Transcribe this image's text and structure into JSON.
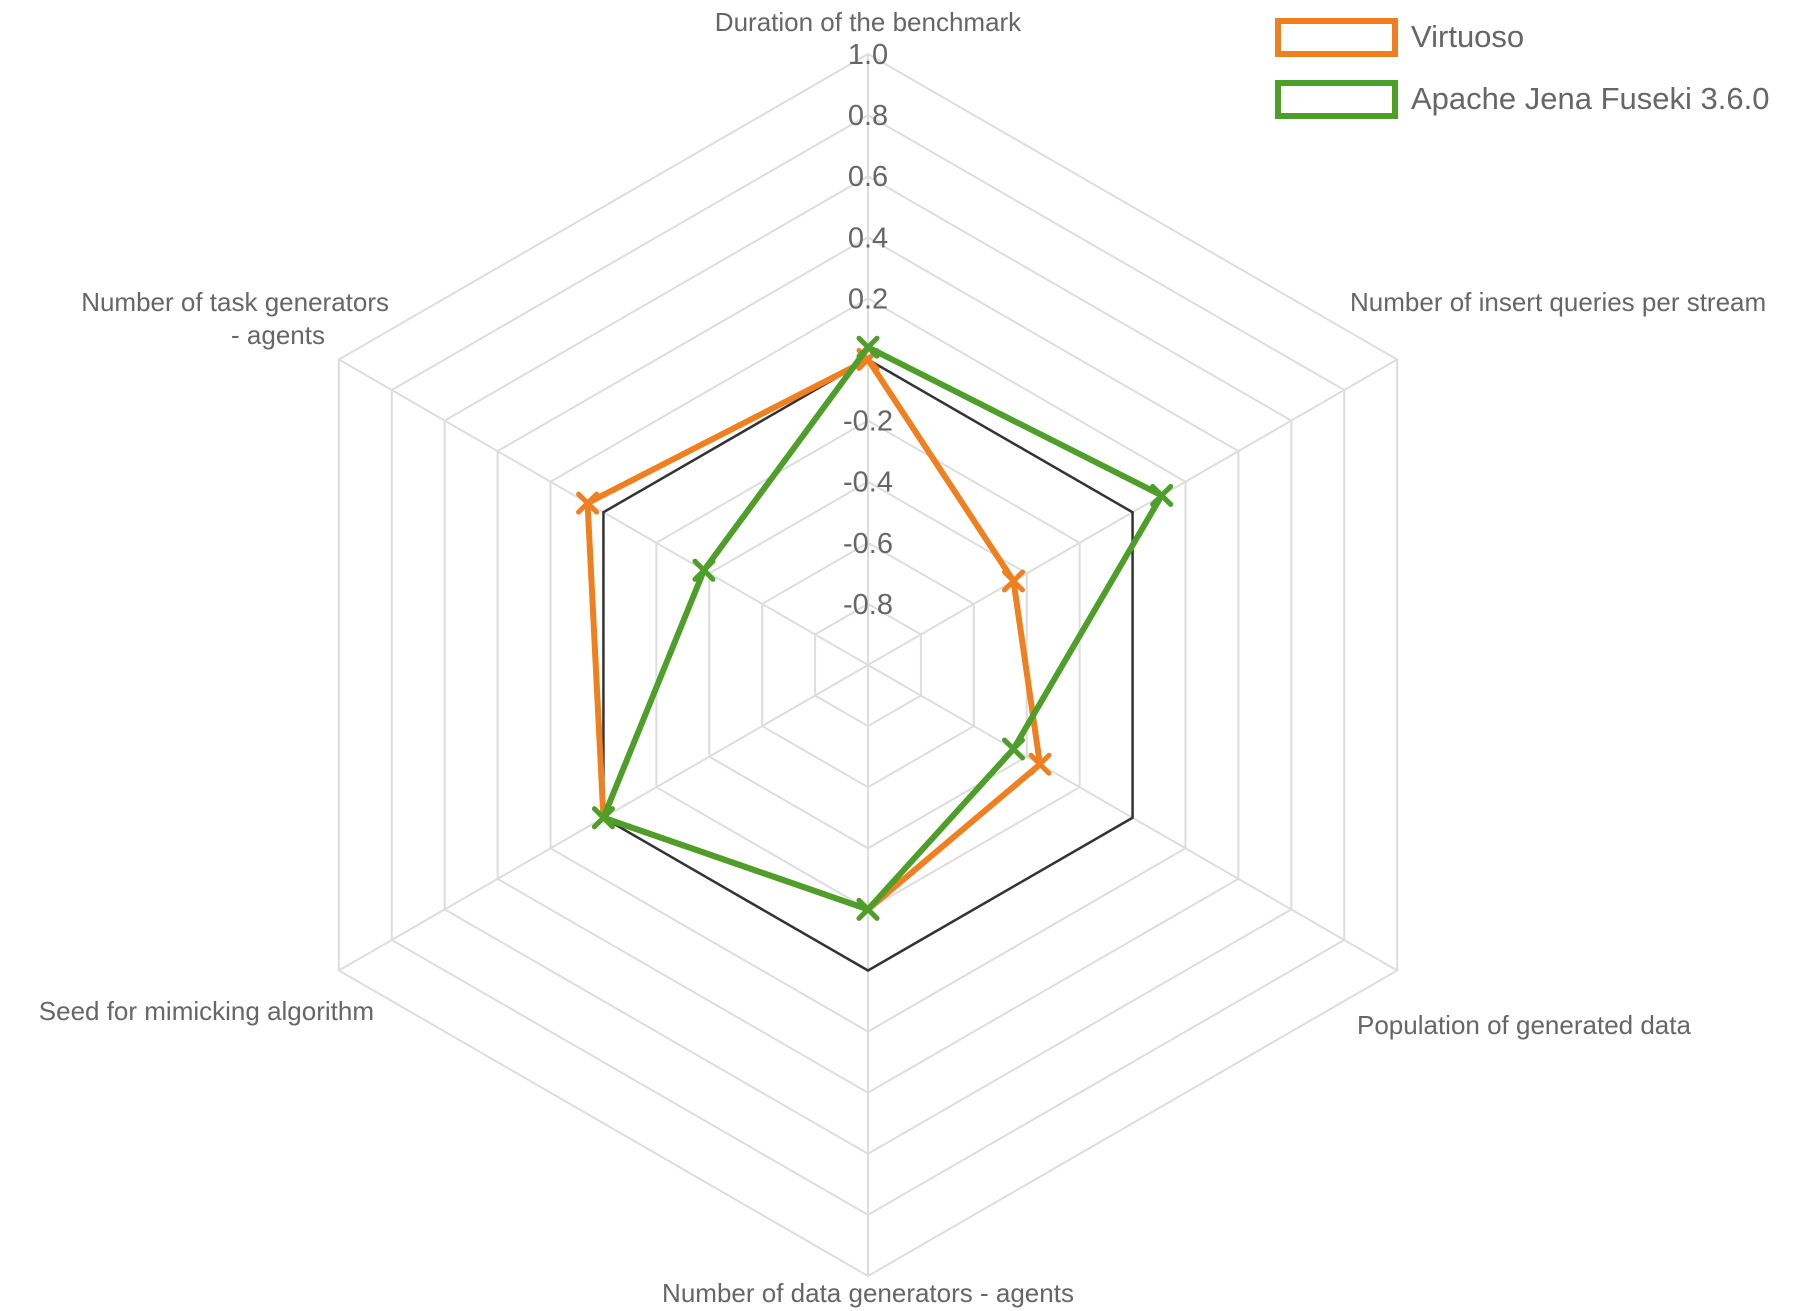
{
  "chart_data": {
    "type": "radar",
    "axes": [
      "Duration of the benchmark",
      "Number of insert queries per stream",
      "Population of generated data",
      "Number of data generators - agents",
      "Seed for mimicking algorithm",
      "Number of task generators - agents"
    ],
    "axis_label_lines": [
      [
        "Duration of the benchmark"
      ],
      [
        "Number of insert queries per stream"
      ],
      [
        "Population of generated data"
      ],
      [
        "Number of data generators - agents"
      ],
      [
        "Seed for mimicking algorithm"
      ],
      [
        "Number of task generators",
        "- agents"
      ]
    ],
    "rlim": [
      -1.0,
      1.0
    ],
    "ticks": [
      "-0.8",
      "-0.6",
      "-0.4",
      "-0.2",
      "0.0",
      "0.2",
      "0.4",
      "0.6",
      "0.8",
      "1.0"
    ],
    "tick_values": [
      -0.8,
      -0.6,
      -0.4,
      -0.2,
      0.0,
      0.2,
      0.4,
      0.6,
      0.8,
      1.0
    ],
    "visible_tick_labels": [
      "-0.8",
      "-0.6",
      "-0.4",
      "-0.2",
      "0.2",
      "0.4",
      "0.6",
      "0.8",
      "1.0"
    ],
    "baseline": {
      "value": 0.0,
      "color": "#333333"
    },
    "series": [
      {
        "name": "Virtuoso",
        "color": "#f07f1f",
        "values": [
          0.0,
          -0.45,
          -0.35,
          -0.2,
          0.0,
          0.06
        ]
      },
      {
        "name": "Apache Jena Fuseki 3.6.0",
        "color": "#4e9e2a",
        "values": [
          0.04,
          0.11,
          -0.45,
          -0.2,
          0.0,
          -0.38
        ]
      }
    ],
    "legend": {
      "position": "top-right"
    },
    "grid": true
  }
}
